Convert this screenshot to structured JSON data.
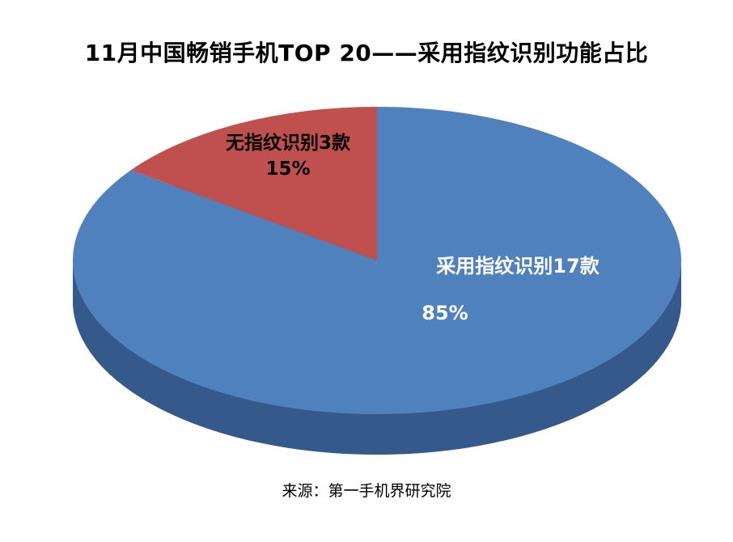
{
  "page": {
    "title": "11月中国畅销手机TOP 20——采用指纹识别功能占比",
    "source": "来源：第一手机界研究院"
  },
  "chart_data": {
    "type": "pie",
    "style": "3d",
    "title": "11月中国畅销手机TOP 20——采用指纹识别功能占比",
    "start_angle_deg": 0,
    "direction": "clockwise",
    "legend": "none",
    "slices": [
      {
        "label": "采用指纹识别17款",
        "count": 17,
        "value": 85,
        "percent_label": "85%",
        "color": "#4f81bd",
        "side_color": "#35598a",
        "label_color": "#ffffff"
      },
      {
        "label": "无指纹识别3款",
        "count": 3,
        "value": 15,
        "percent_label": "15%",
        "color": "#c0504d",
        "side_color": "#943634",
        "label_color": "#000000"
      }
    ],
    "source": "来源：第一手机界研究院"
  }
}
